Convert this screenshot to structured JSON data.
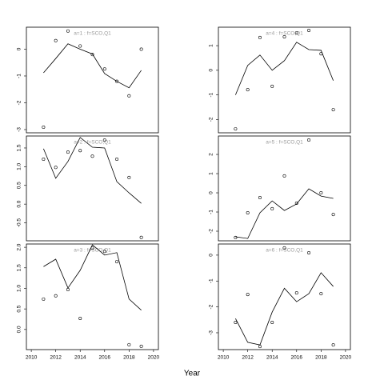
{
  "x_label": "Year",
  "chart_data": [
    {
      "type": "scatter",
      "title": "a=1 : f=SCO,Q1",
      "x": [
        2011,
        2012,
        2013,
        2014,
        2015,
        2016,
        2017,
        2018,
        2019
      ],
      "xlim": [
        2009.6,
        2020.4
      ],
      "ylim": [
        -3.12,
        0.82
      ],
      "yticks": [
        0,
        -1,
        -2,
        -3
      ],
      "series": [
        {
          "mode": "markers",
          "color": "#000000",
          "values": [
            -2.91,
            0.32,
            0.68,
            0.12,
            -0.2,
            -0.74,
            -1.2,
            -1.74,
            0
          ]
        },
        {
          "mode": "line",
          "color": "#000000",
          "values": [
            -0.88,
            -0.35,
            0.2,
            0.0,
            -0.18,
            -0.91,
            -1.2,
            -1.44,
            -0.79
          ]
        }
      ]
    },
    {
      "type": "scatter",
      "title": "a=2 : f=SCO,Q1",
      "x": [
        2011,
        2012,
        2013,
        2014,
        2015,
        2016,
        2017,
        2018,
        2019
      ],
      "xlim": [
        2009.6,
        2020.4
      ],
      "ylim": [
        -0.98,
        1.82
      ],
      "yticks": [
        1.5,
        {
          "value": 1,
          "label": "1.0"
        },
        0.5,
        {
          "value": 0,
          "label": "0.0"
        },
        -0.5
      ],
      "series": [
        {
          "mode": "markers",
          "color": "#000000",
          "values": [
            1.2,
            0.98,
            1.39,
            1.43,
            1.28,
            1.71,
            1.2,
            0.71,
            -0.89
          ]
        },
        {
          "mode": "line",
          "color": "#000000",
          "values": [
            1.48,
            0.69,
            1.14,
            1.78,
            1.52,
            1.5,
            0.6,
            0.3,
            0.02
          ]
        }
      ]
    },
    {
      "type": "scatter",
      "title": "a=3 : f=SCO,Q1",
      "x": [
        2011,
        2012,
        2013,
        2014,
        2015,
        2016,
        2017,
        2018,
        2019
      ],
      "xlim": [
        2009.6,
        2020.4
      ],
      "ylim": [
        -0.49,
        2.08
      ],
      "yticks": [
        {
          "value": 2,
          "label": "2.0"
        },
        1.5,
        {
          "value": 1,
          "label": "1.0"
        },
        0.5,
        {
          "value": 0,
          "label": "0.0"
        }
      ],
      "xticks": [
        2010,
        2012,
        2014,
        2016,
        2018,
        2020
      ],
      "series": [
        {
          "mode": "markers",
          "color": "#000000",
          "values": [
            0.74,
            0.82,
            0.97,
            0.27,
            1.98,
            1.9,
            1.65,
            -0.37,
            -0.41
          ]
        },
        {
          "mode": "line",
          "color": "#000000",
          "values": [
            1.53,
            1.71,
            1.01,
            1.44,
            2.06,
            1.81,
            1.87,
            0.74,
            0.47
          ]
        }
      ]
    },
    {
      "type": "scatter",
      "title": "a=4 : f=SCO,Q1",
      "x": [
        2011,
        2012,
        2013,
        2014,
        2015,
        2016,
        2017,
        2018,
        2019
      ],
      "xlim": [
        2009.6,
        2020.4
      ],
      "ylim": [
        -2.54,
        1.75
      ],
      "yticks": [
        1,
        0,
        -1,
        -2
      ],
      "series": [
        {
          "mode": "markers",
          "color": "#000000",
          "values": [
            -2.38,
            -0.79,
            1.33,
            -0.65,
            1.36,
            1.52,
            1.62,
            0.67,
            -1.6
          ]
        },
        {
          "mode": "line",
          "color": "#000000",
          "values": [
            -1.0,
            0.2,
            0.62,
            0,
            0.39,
            1.14,
            0.84,
            0.81,
            -0.42
          ]
        }
      ]
    },
    {
      "type": "scatter",
      "title": "a=5 : f=SCO,Q1",
      "x": [
        2011,
        2012,
        2013,
        2014,
        2015,
        2016,
        2017,
        2018,
        2019
      ],
      "xlim": [
        2009.6,
        2020.4
      ],
      "ylim": [
        -2.5,
        2.96
      ],
      "yticks": [
        2,
        1,
        0,
        -1,
        -2
      ],
      "series": [
        {
          "mode": "markers",
          "color": "#000000",
          "values": [
            -2.33,
            -1.04,
            -0.25,
            -0.83,
            0.88,
            -0.54,
            2.75,
            0,
            -1.13
          ]
        },
        {
          "mode": "line",
          "color": "#000000",
          "values": [
            -2.29,
            -2.38,
            -1.04,
            -0.42,
            -0.92,
            -0.58,
            0.21,
            -0.17,
            -0.29
          ]
        }
      ]
    },
    {
      "type": "scatter",
      "title": "a=6 : f=SCO,Q1",
      "x": [
        2011,
        2012,
        2013,
        2014,
        2015,
        2016,
        2017,
        2018,
        2019
      ],
      "xlim": [
        2009.6,
        2020.4
      ],
      "ylim": [
        -3.65,
        0.43
      ],
      "yticks": [
        0,
        -1,
        -2,
        -3
      ],
      "xticks": [
        2010,
        2012,
        2014,
        2016,
        2018,
        2020
      ],
      "series": [
        {
          "mode": "markers",
          "color": "#000000",
          "values": [
            -2.6,
            -1.52,
            -3.53,
            -2.6,
            0.28,
            -1.46,
            0.09,
            -1.49,
            -3.47
          ]
        },
        {
          "mode": "line",
          "color": "#000000",
          "values": [
            -2.45,
            -3.37,
            -3.47,
            -2.2,
            -1.28,
            -1.8,
            -1.49,
            -0.68,
            -1.21
          ]
        }
      ]
    }
  ]
}
